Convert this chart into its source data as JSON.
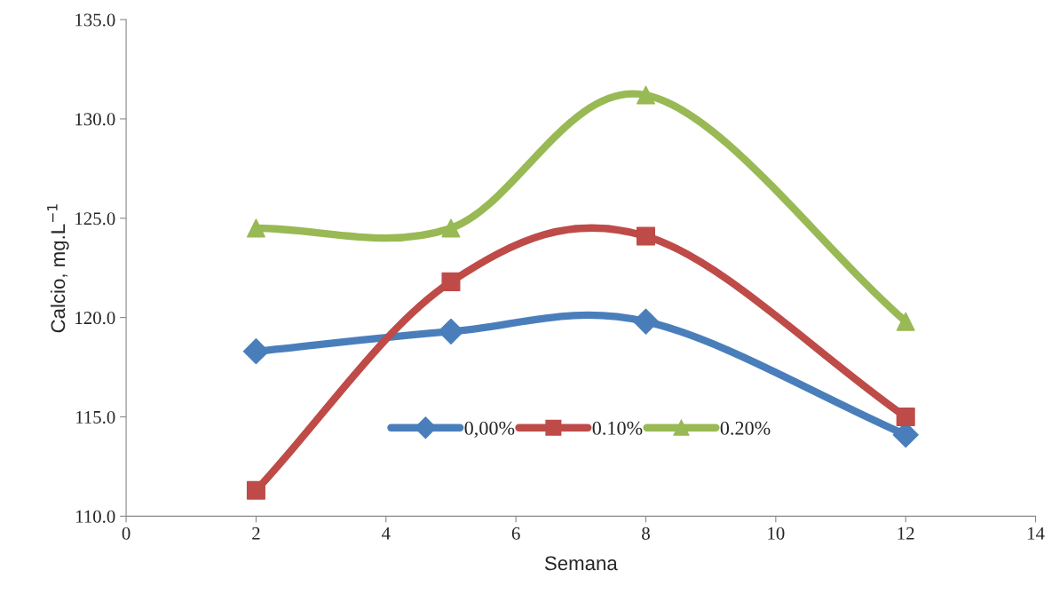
{
  "chart_data": {
    "type": "line",
    "xlabel": "Semana",
    "ylabel": "Calcio, mg.L$^{−1}$",
    "x": [
      2,
      5,
      8,
      12
    ],
    "series": [
      {
        "name": "0,00%",
        "color": "#4a7ebb",
        "marker": "diamond",
        "values": [
          118.3,
          119.3,
          119.8,
          114.1
        ]
      },
      {
        "name": "0.10%",
        "color": "#be4b48",
        "marker": "square",
        "values": [
          111.3,
          121.8,
          124.1,
          115.0
        ]
      },
      {
        "name": "0.20%",
        "color": "#98b954",
        "marker": "triangle",
        "values": [
          124.5,
          124.5,
          131.2,
          119.8
        ]
      }
    ],
    "xlim": [
      0,
      14
    ],
    "xticks": [
      0,
      2,
      4,
      6,
      8,
      10,
      12,
      14
    ],
    "ylim": [
      110,
      135
    ],
    "yticks": [
      {
        "value": 110,
        "label": "110.0"
      },
      {
        "value": 115,
        "label": "115.0"
      },
      {
        "value": 120,
        "label": "120.0"
      },
      {
        "value": 125,
        "label": "125.0"
      },
      {
        "value": 130,
        "label": "130.0"
      },
      {
        "value": 135,
        "label": "135.0"
      }
    ],
    "grid": false,
    "legend": "bottom",
    "line_style": "solid"
  }
}
